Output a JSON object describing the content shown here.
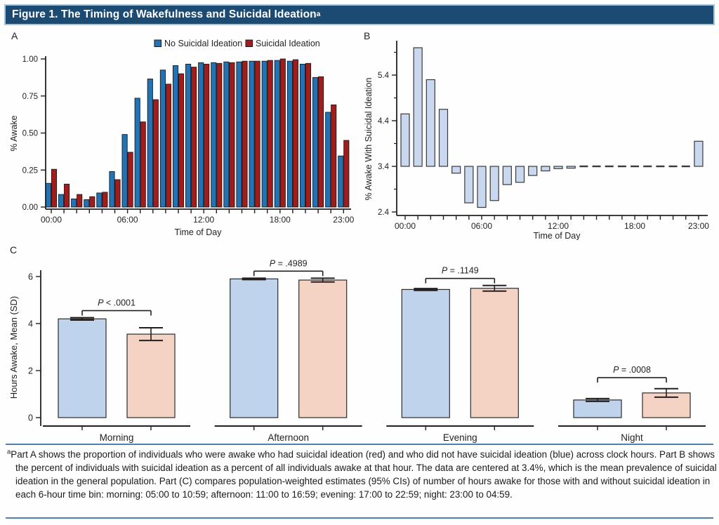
{
  "title": {
    "text": "Figure 1. The Timing of Wakefulness and Suicidal Ideation",
    "sup": "a"
  },
  "footnote": {
    "sup": "a",
    "text": "Part A shows the proportion of individuals who were awake who had suicidal ideation (red) and who did not have suicidal ideation (blue) across clock hours. Part B shows the percent of individuals with suicidal ideation as a percent of all individuals awake at that hour. The data are centered at 3.4%, which is the mean prevalence of suicidal ideation in the general population. Part (C) compares population-weighted estimates (95% CIs) of number of hours awake for those with and without suicidal ideation in each 6-hour time bin: morning: 05:00 to 10:59; afternoon: 11:00 to 16:59; evening: 17:00 to 22:59; night: 23:00 to 04:59."
  },
  "colors": {
    "title_bar": "#1b4a73",
    "title_bar_border": "#a9c5dc",
    "rule": "#4d7fb0",
    "axis": "#231f20",
    "no_si_bar": "#2273b5",
    "si_bar": "#a21c1c",
    "panelB_bar_fill": "#c9d7ef",
    "panelB_bar_stroke": "#3a3a3a",
    "panelC_no_si_fill": "#c0d3ed",
    "panelC_si_fill": "#f5d3c4",
    "error_bar": "#222222"
  },
  "chart_data": [
    {
      "id": "panel-a",
      "type": "bar",
      "panel_label": "A",
      "xlabel": "Time of Day",
      "ylabel": "% Awake",
      "ylim": [
        0,
        1.0
      ],
      "yticks": [
        {
          "v": 0,
          "label": "0.00"
        },
        {
          "v": 0.25,
          "label": "0.25"
        },
        {
          "v": 0.5,
          "label": "0.50"
        },
        {
          "v": 0.75,
          "label": "0.75"
        },
        {
          "v": 1,
          "label": "1.00"
        }
      ],
      "xticks": [
        {
          "h": 0,
          "label": "00:00"
        },
        {
          "h": 6,
          "label": "06:00"
        },
        {
          "h": 12,
          "label": "12:00"
        },
        {
          "h": 18,
          "label": "18:00"
        },
        {
          "h": 23,
          "label": "23:00"
        }
      ],
      "hours": 24,
      "legend": [
        {
          "label": "No Suicidal Ideation",
          "color_key": "no_si_bar"
        },
        {
          "label": "Suicidal Ideation",
          "color_key": "si_bar"
        }
      ],
      "series": [
        {
          "name": "No Suicidal Ideation",
          "values": [
            0.16,
            0.085,
            0.055,
            0.05,
            0.095,
            0.24,
            0.49,
            0.735,
            0.865,
            0.925,
            0.955,
            0.965,
            0.975,
            0.975,
            0.98,
            0.98,
            0.985,
            0.985,
            0.99,
            0.985,
            0.965,
            0.875,
            0.64,
            0.345
          ]
        },
        {
          "name": "Suicidal Ideation",
          "values": [
            0.255,
            0.155,
            0.085,
            0.07,
            0.1,
            0.185,
            0.37,
            0.575,
            0.725,
            0.83,
            0.9,
            0.945,
            0.965,
            0.97,
            0.975,
            0.985,
            0.985,
            0.99,
            1.0,
            0.995,
            0.97,
            0.88,
            0.69,
            0.45
          ]
        }
      ]
    },
    {
      "id": "panel-b",
      "type": "bar",
      "panel_label": "B",
      "xlabel": "Time of Day",
      "ylabel": "% Awake With Suicidal Ideation",
      "baseline": 3.4,
      "ylim": [
        2.4,
        6.0
      ],
      "yticks": [
        {
          "v": 2.4,
          "label": "2.4"
        },
        {
          "v": 3.4,
          "label": "3.4"
        },
        {
          "v": 4.4,
          "label": "4.4"
        },
        {
          "v": 5.4,
          "label": "5.4"
        }
      ],
      "yticks_minor": [
        2.9,
        3.9,
        4.9,
        5.9
      ],
      "xticks": [
        {
          "h": 0,
          "label": "00:00"
        },
        {
          "h": 6,
          "label": "06:00"
        },
        {
          "h": 12,
          "label": "12:00"
        },
        {
          "h": 18,
          "label": "18:00"
        },
        {
          "h": 23,
          "label": "23:00"
        }
      ],
      "hours": 24,
      "values": [
        4.55,
        6.0,
        5.3,
        4.65,
        3.25,
        2.6,
        2.5,
        2.65,
        3.0,
        3.05,
        3.2,
        3.3,
        3.35,
        3.36,
        3.37,
        3.38,
        3.38,
        3.38,
        3.38,
        3.39,
        3.39,
        3.4,
        3.38,
        3.95
      ]
    },
    {
      "id": "panel-c",
      "type": "bar",
      "panel_label": "C",
      "ylabel": "Hours Awake, Mean (SD)",
      "ylim": [
        0,
        6
      ],
      "yticks": [
        {
          "v": 0,
          "label": "0"
        },
        {
          "v": 2,
          "label": "2"
        },
        {
          "v": 4,
          "label": "4"
        },
        {
          "v": 6,
          "label": "6"
        }
      ],
      "series_names": [
        "No Suicidal Ideation",
        "Suicidal Ideation"
      ],
      "groups": [
        {
          "label": "Morning",
          "p_label": "P < .0001",
          "no_si_mean": 4.2,
          "no_si_err": 0.05,
          "si_mean": 3.55,
          "si_err": 0.27
        },
        {
          "label": "Afternoon",
          "p_label": "P = .4989",
          "no_si_mean": 5.9,
          "no_si_err": 0.03,
          "si_mean": 5.85,
          "si_err": 0.08
        },
        {
          "label": "Evening",
          "p_label": "P = .1149",
          "no_si_mean": 5.45,
          "no_si_err": 0.04,
          "si_mean": 5.5,
          "si_err": 0.12
        },
        {
          "label": "Night",
          "p_label": "P = .0008",
          "no_si_mean": 0.75,
          "no_si_err": 0.06,
          "si_mean": 1.05,
          "si_err": 0.18
        }
      ]
    }
  ]
}
